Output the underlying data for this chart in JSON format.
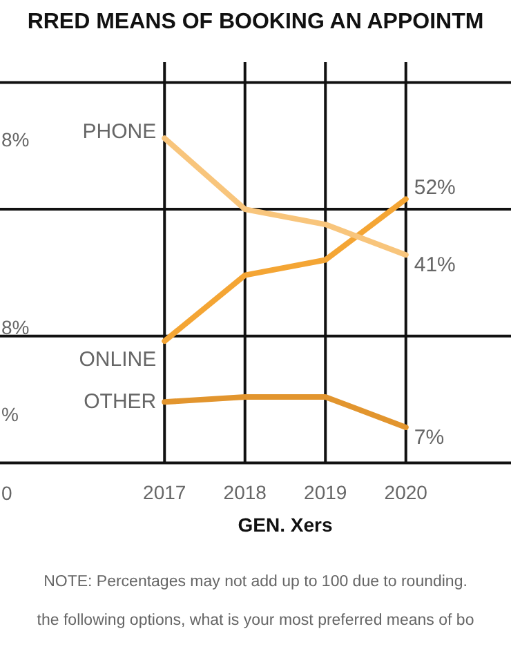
{
  "chart_data": {
    "type": "line",
    "title": "RRED MEANS OF BOOKING AN APPOINTM",
    "xlabel": "GEN. Xers",
    "categories": [
      "2017",
      "2018",
      "2019",
      "2020"
    ],
    "series": [
      {
        "name": "PHONE",
        "color": "#f8c57c",
        "values": [
          64,
          50,
          47,
          41
        ],
        "value_labels": [
          null,
          null,
          null,
          "41%"
        ]
      },
      {
        "name": "ONLINE",
        "color": "#f4a534",
        "values": [
          24,
          37,
          40,
          52
        ],
        "value_labels": [
          null,
          null,
          null,
          "52%"
        ]
      },
      {
        "name": "OTHER",
        "color": "#e2952e",
        "values": [
          12,
          13,
          13,
          7
        ],
        "value_labels": [
          null,
          null,
          null,
          "7%"
        ]
      }
    ],
    "ylim": [
      0,
      79
    ],
    "yticks": [
      {
        "value": 0,
        "label": null
      },
      {
        "value": 25,
        "label": null
      },
      {
        "value": 50,
        "label": null
      },
      {
        "value": 75,
        "label": null
      }
    ],
    "tick_labels": "x",
    "grid": true,
    "legend": false,
    "marker": "none",
    "line_style": "solid",
    "annotations": [
      "8%",
      "8%",
      "%",
      "0",
      "NOTE: Percentages may not add up to 100 due to rounding.",
      "the following options, what is your most preferred means of bo"
    ]
  }
}
